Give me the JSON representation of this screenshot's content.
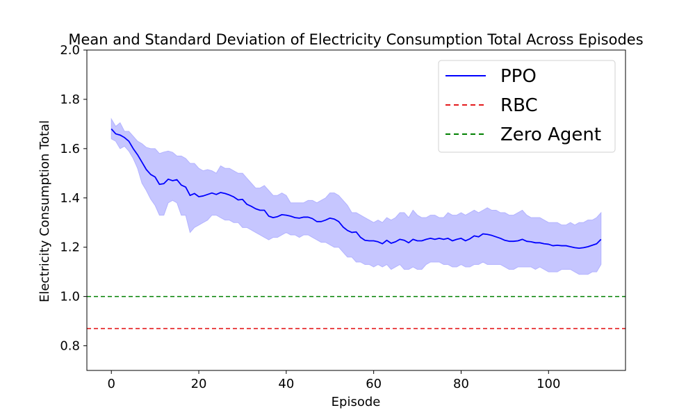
{
  "chart_data": {
    "type": "line",
    "title": "Mean and Standard Deviation of Electricity Consumption Total Across Episodes",
    "xlabel": "Episode",
    "ylabel": "Electricity Consumption Total",
    "xlim": [
      -5.6,
      117.6
    ],
    "ylim": [
      0.7,
      2.0
    ],
    "xticks": [
      0,
      20,
      40,
      60,
      80,
      100
    ],
    "yticks": [
      0.8,
      1.0,
      1.2,
      1.4,
      1.6,
      1.8,
      2.0
    ],
    "xtick_labels": [
      "0",
      "20",
      "40",
      "60",
      "80",
      "100"
    ],
    "ytick_labels": [
      "0.8",
      "1.0",
      "1.2",
      "1.4",
      "1.6",
      "1.8",
      "2.0"
    ],
    "grid": false,
    "legend_position": "top-right",
    "legend": [
      "PPO",
      "RBC",
      "Zero Agent"
    ],
    "x": [
      0,
      1,
      2,
      3,
      4,
      5,
      6,
      7,
      8,
      9,
      10,
      11,
      12,
      13,
      14,
      15,
      16,
      17,
      18,
      19,
      20,
      21,
      22,
      23,
      24,
      25,
      26,
      27,
      28,
      29,
      30,
      31,
      32,
      33,
      34,
      35,
      36,
      37,
      38,
      39,
      40,
      41,
      42,
      43,
      44,
      45,
      46,
      47,
      48,
      49,
      50,
      51,
      52,
      53,
      54,
      55,
      56,
      57,
      58,
      59,
      60,
      61,
      62,
      63,
      64,
      65,
      66,
      67,
      68,
      69,
      70,
      71,
      72,
      73,
      74,
      75,
      76,
      77,
      78,
      79,
      80,
      81,
      82,
      83,
      84,
      85,
      86,
      87,
      88,
      89,
      90,
      91,
      92,
      93,
      94,
      95,
      96,
      97,
      98,
      99,
      100,
      101,
      102,
      103,
      104,
      105,
      106,
      107,
      108,
      109,
      110,
      111,
      112
    ],
    "series": [
      {
        "name": "PPO",
        "style": "solid",
        "color": "#0000ff",
        "values": [
          1.68,
          1.66,
          1.655,
          1.645,
          1.63,
          1.6,
          1.575,
          1.545,
          1.515,
          1.495,
          1.485,
          1.455,
          1.458,
          1.476,
          1.47,
          1.474,
          1.452,
          1.444,
          1.41,
          1.418,
          1.405,
          1.408,
          1.414,
          1.42,
          1.414,
          1.422,
          1.418,
          1.412,
          1.404,
          1.392,
          1.394,
          1.374,
          1.366,
          1.356,
          1.35,
          1.35,
          1.326,
          1.32,
          1.324,
          1.332,
          1.33,
          1.326,
          1.32,
          1.318,
          1.322,
          1.322,
          1.316,
          1.304,
          1.304,
          1.31,
          1.318,
          1.314,
          1.304,
          1.282,
          1.268,
          1.26,
          1.262,
          1.24,
          1.228,
          1.226,
          1.226,
          1.222,
          1.214,
          1.228,
          1.216,
          1.222,
          1.232,
          1.228,
          1.218,
          1.232,
          1.226,
          1.226,
          1.232,
          1.236,
          1.232,
          1.236,
          1.232,
          1.236,
          1.226,
          1.232,
          1.236,
          1.226,
          1.234,
          1.246,
          1.242,
          1.254,
          1.252,
          1.248,
          1.242,
          1.236,
          1.228,
          1.224,
          1.224,
          1.226,
          1.232,
          1.224,
          1.222,
          1.218,
          1.218,
          1.214,
          1.212,
          1.206,
          1.208,
          1.206,
          1.206,
          1.202,
          1.198,
          1.196,
          1.198,
          1.202,
          1.208,
          1.214,
          1.232
        ]
      },
      {
        "name": "PPO ± std lower",
        "values": [
          1.64,
          1.63,
          1.6,
          1.61,
          1.59,
          1.56,
          1.52,
          1.46,
          1.43,
          1.395,
          1.37,
          1.33,
          1.33,
          1.38,
          1.39,
          1.38,
          1.33,
          1.33,
          1.26,
          1.28,
          1.29,
          1.3,
          1.31,
          1.33,
          1.33,
          1.32,
          1.31,
          1.31,
          1.3,
          1.3,
          1.28,
          1.28,
          1.27,
          1.26,
          1.25,
          1.24,
          1.23,
          1.24,
          1.24,
          1.25,
          1.26,
          1.25,
          1.25,
          1.24,
          1.25,
          1.25,
          1.24,
          1.23,
          1.22,
          1.22,
          1.21,
          1.2,
          1.2,
          1.18,
          1.16,
          1.16,
          1.14,
          1.14,
          1.13,
          1.13,
          1.12,
          1.13,
          1.12,
          1.13,
          1.11,
          1.12,
          1.13,
          1.11,
          1.11,
          1.12,
          1.11,
          1.11,
          1.13,
          1.14,
          1.14,
          1.14,
          1.13,
          1.13,
          1.12,
          1.12,
          1.13,
          1.12,
          1.12,
          1.13,
          1.13,
          1.14,
          1.13,
          1.13,
          1.13,
          1.13,
          1.12,
          1.11,
          1.11,
          1.12,
          1.12,
          1.12,
          1.12,
          1.11,
          1.12,
          1.11,
          1.1,
          1.1,
          1.1,
          1.11,
          1.11,
          1.11,
          1.1,
          1.09,
          1.09,
          1.09,
          1.1,
          1.1,
          1.13
        ]
      },
      {
        "name": "PPO ± std upper",
        "values": [
          1.72,
          1.69,
          1.705,
          1.67,
          1.67,
          1.65,
          1.63,
          1.62,
          1.605,
          1.6,
          1.6,
          1.58,
          1.586,
          1.59,
          1.585,
          1.57,
          1.57,
          1.56,
          1.54,
          1.54,
          1.52,
          1.51,
          1.515,
          1.51,
          1.5,
          1.53,
          1.52,
          1.52,
          1.51,
          1.5,
          1.5,
          1.48,
          1.46,
          1.44,
          1.44,
          1.45,
          1.43,
          1.41,
          1.41,
          1.42,
          1.41,
          1.38,
          1.38,
          1.38,
          1.38,
          1.39,
          1.39,
          1.38,
          1.39,
          1.4,
          1.42,
          1.42,
          1.41,
          1.39,
          1.37,
          1.34,
          1.34,
          1.33,
          1.32,
          1.31,
          1.3,
          1.31,
          1.3,
          1.32,
          1.31,
          1.32,
          1.34,
          1.34,
          1.32,
          1.35,
          1.33,
          1.32,
          1.32,
          1.33,
          1.33,
          1.32,
          1.32,
          1.34,
          1.33,
          1.33,
          1.34,
          1.33,
          1.34,
          1.35,
          1.34,
          1.35,
          1.36,
          1.35,
          1.35,
          1.34,
          1.34,
          1.33,
          1.33,
          1.34,
          1.35,
          1.33,
          1.32,
          1.32,
          1.32,
          1.31,
          1.3,
          1.3,
          1.3,
          1.29,
          1.29,
          1.3,
          1.29,
          1.3,
          1.3,
          1.31,
          1.31,
          1.32,
          1.34
        ]
      },
      {
        "name": "RBC",
        "style": "dashed",
        "color": "#e41a1c",
        "constant": 0.87
      },
      {
        "name": "Zero Agent",
        "style": "dashed",
        "color": "#008000",
        "constant": 1.0
      }
    ],
    "band_fill": "#b3b3ff"
  }
}
